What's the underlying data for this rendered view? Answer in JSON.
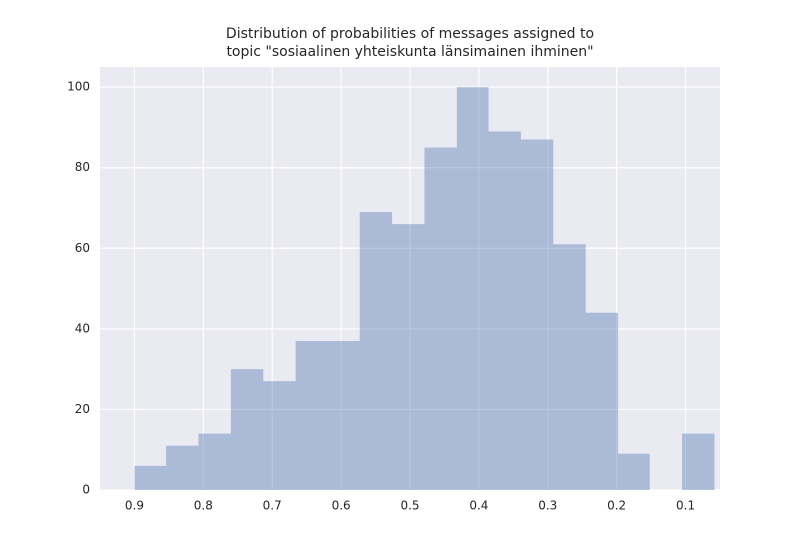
{
  "chart_data": {
    "type": "histogram",
    "title": [
      "Distribution of probabilities of messages assigned to",
      "topic \"sosiaalinen yhteiskunta länsimainen ihminen\""
    ],
    "bins": [
      0.058,
      0.105,
      0.152,
      0.198,
      0.245,
      0.292,
      0.339,
      0.386,
      0.432,
      0.479,
      0.526,
      0.573,
      0.62,
      0.666,
      0.713,
      0.76,
      0.807,
      0.854,
      0.9
    ],
    "values": [
      14,
      0,
      9,
      44,
      61,
      87,
      89,
      100,
      85,
      66,
      69,
      37,
      37,
      27,
      30,
      14,
      11,
      6
    ],
    "color": "#4c72b0",
    "xlim": [
      0.95,
      0.05
    ],
    "xticks": [
      0.9,
      0.8,
      0.7,
      0.6,
      0.5,
      0.4,
      0.3,
      0.2,
      0.1
    ],
    "ylim": [
      0,
      105
    ],
    "yticks": [
      0,
      20,
      40,
      60,
      80,
      100
    ],
    "grid": true
  }
}
